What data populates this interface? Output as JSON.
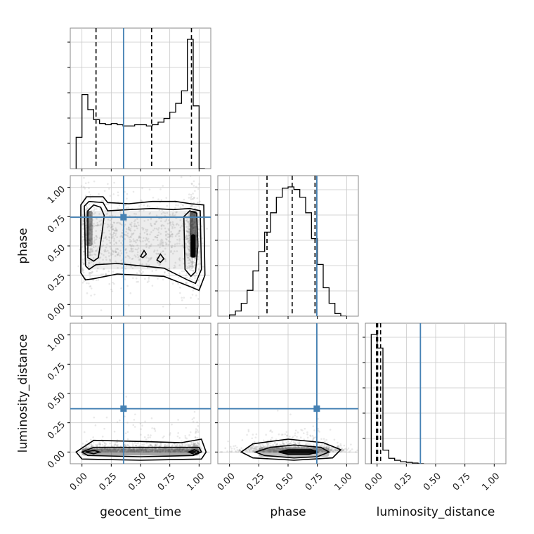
{
  "chart_data": {
    "type": "corner",
    "parameters": [
      "geocent_time",
      "phase",
      "luminosity_distance"
    ],
    "labels": {
      "geocent_time": "geocent_time",
      "phase": "phase",
      "luminosity_distance": "luminosity_distance"
    },
    "tick_values": [
      0.0,
      0.25,
      0.5,
      0.75,
      1.0
    ],
    "tick_labels": [
      "0.00",
      "0.25",
      "0.50",
      "0.75",
      "1.00"
    ],
    "ranges": {
      "geocent_time": [
        -0.1,
        1.1
      ],
      "phase": [
        -0.1,
        1.1
      ],
      "luminosity_distance": [
        -0.1,
        1.1
      ]
    },
    "grid": true,
    "truth_color": "#4682b4",
    "truths": {
      "geocent_time": 0.355,
      "phase": 0.745,
      "luminosity_distance": 0.37
    },
    "quantiles": {
      "geocent_time": [
        0.12,
        0.595,
        0.935
      ],
      "phase": [
        0.32,
        0.535,
        0.73
      ],
      "luminosity_distance": [
        -0.005,
        0.005,
        0.03
      ]
    },
    "histograms": {
      "geocent_time": {
        "bin_edges": [
          -0.05,
          0.0,
          0.05,
          0.1,
          0.15,
          0.2,
          0.25,
          0.3,
          0.35,
          0.4,
          0.45,
          0.5,
          0.55,
          0.6,
          0.65,
          0.7,
          0.75,
          0.8,
          0.85,
          0.9,
          0.95,
          1.0,
          1.05
        ],
        "counts": [
          0.25,
          0.59,
          0.47,
          0.39,
          0.36,
          0.35,
          0.36,
          0.35,
          0.34,
          0.34,
          0.35,
          0.35,
          0.34,
          0.35,
          0.37,
          0.4,
          0.45,
          0.52,
          0.62,
          1.03,
          0.5,
          0.0
        ]
      },
      "phase": {
        "bin_edges": [
          0.0,
          0.05,
          0.1,
          0.15,
          0.2,
          0.25,
          0.3,
          0.35,
          0.4,
          0.45,
          0.5,
          0.55,
          0.6,
          0.65,
          0.7,
          0.75,
          0.8,
          0.85,
          0.9,
          0.95,
          1.0
        ],
        "counts": [
          0.01,
          0.04,
          0.1,
          0.2,
          0.35,
          0.5,
          0.65,
          0.8,
          0.92,
          0.99,
          1.0,
          0.98,
          0.92,
          0.8,
          0.6,
          0.4,
          0.22,
          0.1,
          0.02,
          0.0
        ]
      },
      "luminosity_distance": {
        "bin_edges": [
          -0.05,
          0.0,
          0.05,
          0.1,
          0.15,
          0.2,
          0.25,
          0.3,
          0.35,
          0.4
        ],
        "counts": [
          0.95,
          0.85,
          0.1,
          0.04,
          0.025,
          0.015,
          0.01,
          0.005,
          0.0
        ]
      }
    },
    "contours": {
      "geocent_time__phase": [
        [
          [
            -0.01,
            0.27
          ],
          [
            -0.01,
            0.85
          ],
          [
            0.04,
            0.92
          ],
          [
            0.18,
            0.92
          ],
          [
            0.22,
            0.87
          ],
          [
            0.4,
            0.86
          ],
          [
            0.6,
            0.88
          ],
          [
            0.8,
            0.88
          ],
          [
            0.93,
            0.86
          ],
          [
            1.04,
            0.85
          ],
          [
            1.05,
            0.25
          ],
          [
            1.0,
            0.12
          ],
          [
            0.93,
            0.15
          ],
          [
            0.7,
            0.24
          ],
          [
            0.5,
            0.25
          ],
          [
            0.3,
            0.26
          ],
          [
            0.1,
            0.22
          ],
          [
            0.03,
            0.21
          ]
        ],
        [
          [
            0.03,
            0.33
          ],
          [
            0.02,
            0.84
          ],
          [
            0.06,
            0.88
          ],
          [
            0.18,
            0.87
          ],
          [
            0.22,
            0.8
          ],
          [
            0.4,
            0.81
          ],
          [
            0.6,
            0.82
          ],
          [
            0.78,
            0.81
          ],
          [
            0.92,
            0.82
          ],
          [
            1.01,
            0.8
          ],
          [
            1.02,
            0.3
          ],
          [
            0.97,
            0.18
          ],
          [
            0.9,
            0.21
          ],
          [
            0.7,
            0.31
          ],
          [
            0.5,
            0.33
          ],
          [
            0.3,
            0.35
          ],
          [
            0.12,
            0.34
          ],
          [
            0.06,
            0.3
          ]
        ],
        [
          [
            0.05,
            0.4
          ],
          [
            0.05,
            0.8
          ],
          [
            0.1,
            0.85
          ],
          [
            0.16,
            0.83
          ],
          [
            0.19,
            0.76
          ],
          [
            0.17,
            0.6
          ],
          [
            0.14,
            0.4
          ],
          [
            0.1,
            0.37
          ]
        ],
        [
          [
            0.88,
            0.3
          ],
          [
            0.87,
            0.75
          ],
          [
            0.92,
            0.8
          ],
          [
            0.98,
            0.78
          ],
          [
            0.99,
            0.5
          ],
          [
            0.97,
            0.28
          ],
          [
            0.93,
            0.24
          ]
        ],
        [
          [
            0.5,
            0.41
          ],
          [
            0.53,
            0.46
          ],
          [
            0.55,
            0.43
          ],
          [
            0.52,
            0.4
          ]
        ],
        [
          [
            0.64,
            0.38
          ],
          [
            0.67,
            0.43
          ],
          [
            0.7,
            0.39
          ],
          [
            0.67,
            0.36
          ]
        ]
      ],
      "geocent_time__luminosity_distance": [
        [
          [
            -0.05,
            0.0
          ],
          [
            0.1,
            0.1
          ],
          [
            0.5,
            0.09
          ],
          [
            0.85,
            0.08
          ],
          [
            1.02,
            0.11
          ],
          [
            1.06,
            0.0
          ],
          [
            1.02,
            -0.06
          ],
          [
            0.5,
            -0.07
          ],
          [
            0.0,
            -0.06
          ]
        ],
        [
          [
            0.0,
            0.0
          ],
          [
            0.1,
            0.04
          ],
          [
            0.5,
            0.04
          ],
          [
            0.9,
            0.04
          ],
          [
            1.0,
            0.04
          ],
          [
            1.02,
            0.0
          ],
          [
            0.95,
            -0.03
          ],
          [
            0.5,
            -0.04
          ],
          [
            0.05,
            -0.03
          ]
        ],
        [
          [
            0.03,
            0.0
          ],
          [
            0.1,
            0.015
          ],
          [
            0.15,
            0.0
          ],
          [
            0.1,
            -0.015
          ]
        ],
        [
          [
            0.91,
            0.0
          ],
          [
            0.96,
            0.02
          ],
          [
            1.0,
            0.0
          ],
          [
            0.96,
            -0.02
          ]
        ]
      ],
      "phase__luminosity_distance": [
        [
          [
            0.1,
            0.0
          ],
          [
            0.2,
            0.07
          ],
          [
            0.5,
            0.11
          ],
          [
            0.8,
            0.08
          ],
          [
            0.95,
            0.02
          ],
          [
            0.88,
            -0.05
          ],
          [
            0.55,
            -0.07
          ],
          [
            0.2,
            -0.05
          ]
        ],
        [
          [
            0.22,
            0.0
          ],
          [
            0.35,
            0.04
          ],
          [
            0.55,
            0.06
          ],
          [
            0.78,
            0.04
          ],
          [
            0.85,
            0.0
          ],
          [
            0.75,
            -0.04
          ],
          [
            0.55,
            -0.05
          ],
          [
            0.3,
            -0.03
          ]
        ],
        [
          [
            0.42,
            0.0
          ],
          [
            0.5,
            0.02
          ],
          [
            0.7,
            0.02
          ],
          [
            0.75,
            0.0
          ],
          [
            0.68,
            -0.02
          ],
          [
            0.5,
            -0.02
          ]
        ]
      ]
    },
    "density_blobs": {
      "geocent_time__phase": [
        {
          "x": 0.95,
          "y": 0.5,
          "w": 0.04,
          "h": 0.2,
          "alpha": 0.95
        },
        {
          "x": 0.95,
          "y": 0.6,
          "w": 0.06,
          "h": 0.4,
          "alpha": 0.55
        },
        {
          "x": 0.06,
          "y": 0.65,
          "w": 0.06,
          "h": 0.3,
          "alpha": 0.4
        },
        {
          "x": 0.5,
          "y": 0.55,
          "w": 0.9,
          "h": 0.5,
          "alpha": 0.07
        }
      ],
      "geocent_time__luminosity_distance": [
        {
          "x": 0.5,
          "y": 0.0,
          "w": 1.0,
          "h": 0.06,
          "alpha": 0.35
        },
        {
          "x": 0.95,
          "y": 0.0,
          "w": 0.05,
          "h": 0.02,
          "alpha": 0.85
        }
      ],
      "phase__luminosity_distance": [
        {
          "x": 0.6,
          "y": 0.0,
          "w": 0.3,
          "h": 0.03,
          "alpha": 0.9
        },
        {
          "x": 0.55,
          "y": 0.0,
          "w": 0.6,
          "h": 0.08,
          "alpha": 0.25
        }
      ]
    }
  }
}
